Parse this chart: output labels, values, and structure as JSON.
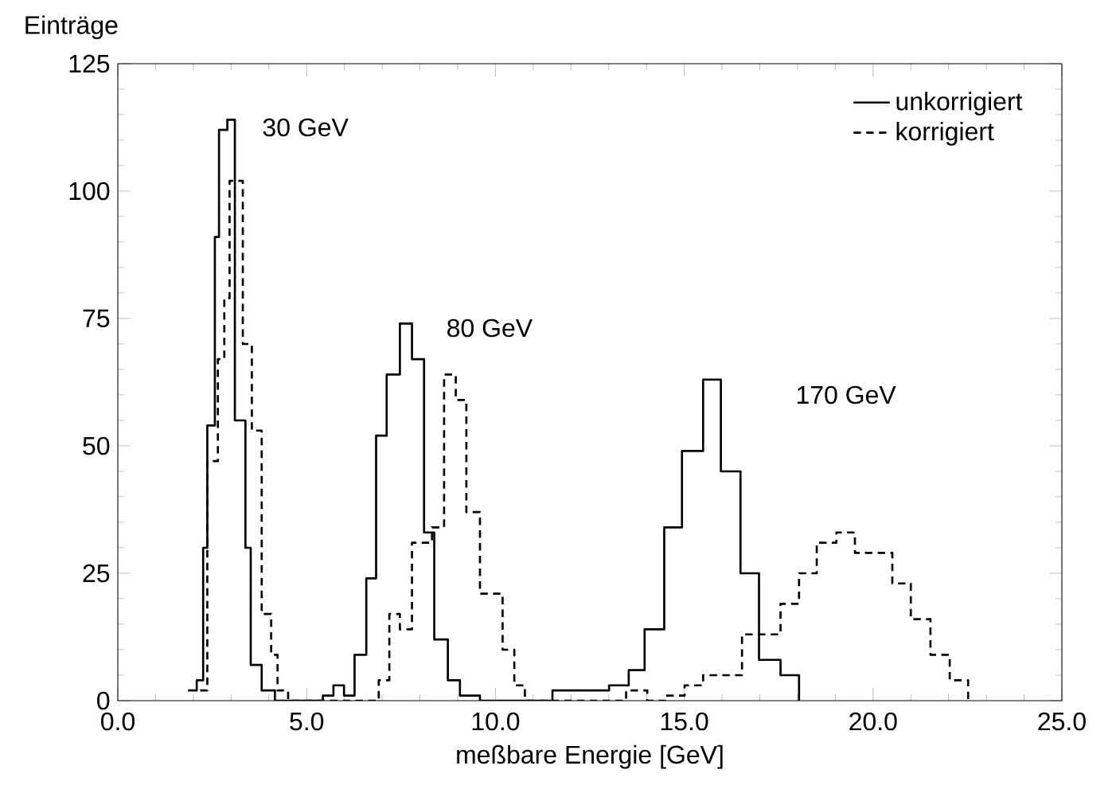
{
  "chart_data": {
    "type": "step",
    "xlabel": "meßbare Energie [GeV]",
    "ylabel": "Einträge",
    "xlim": [
      0,
      25
    ],
    "ylim": [
      0,
      125
    ],
    "xticks": [
      {
        "value": 0,
        "label": "0.0"
      },
      {
        "value": 5,
        "label": "5.0"
      },
      {
        "value": 10,
        "label": "10.0"
      },
      {
        "value": 15,
        "label": "15.0"
      },
      {
        "value": 20,
        "label": "20.0"
      },
      {
        "value": 25,
        "label": "25.0"
      }
    ],
    "yticks": [
      0,
      25,
      50,
      75,
      100,
      125
    ],
    "legend": "top right",
    "marker": "none",
    "series": [
      {
        "name": "unkorrigiert",
        "color": "#000000",
        "line_style": "solid",
        "x": [
          1.86,
          2.09,
          2.26,
          2.37,
          2.57,
          2.68,
          2.9,
          3.1,
          3.38,
          3.52,
          3.81,
          4.16,
          5.43,
          5.71,
          5.99,
          6.27,
          6.58,
          6.84,
          7.12,
          7.47,
          7.79,
          8.11,
          8.38,
          8.74,
          9.06,
          9.59,
          11.51,
          12.05,
          13.01,
          13.53,
          13.95,
          14.47,
          14.94,
          15.5,
          15.97,
          16.49,
          16.98,
          17.55,
          18.04
        ],
        "values": [
          2,
          4,
          30,
          54,
          91,
          112,
          114,
          55,
          30,
          7,
          2,
          0,
          1,
          3,
          1,
          9,
          24,
          52,
          64,
          74,
          67,
          33,
          12,
          4,
          1,
          0,
          2,
          2,
          3,
          6,
          14,
          34,
          49,
          63,
          45,
          25,
          8,
          5,
          0
        ]
      },
      {
        "name": "korrigiert",
        "color": "#000000",
        "line_style": "dashed",
        "x": [
          2.18,
          2.37,
          2.65,
          2.82,
          2.96,
          3.31,
          3.55,
          3.81,
          4.06,
          4.23,
          4.51,
          6.91,
          7.19,
          7.47,
          7.79,
          8.32,
          8.64,
          8.95,
          9.23,
          9.59,
          10.19,
          10.5,
          10.78,
          13.46,
          14.02,
          14.52,
          15.01,
          15.5,
          16.53,
          17.55,
          18.04,
          18.51,
          19.03,
          19.52,
          20.51,
          21.0,
          21.52,
          22.03,
          22.52
        ],
        "values": [
          2,
          47,
          67,
          79,
          102,
          70,
          53,
          17,
          9,
          2,
          0,
          4,
          17,
          14,
          31,
          34,
          64,
          59,
          37,
          21,
          10,
          3,
          0,
          2,
          0,
          1,
          3,
          5,
          13,
          19,
          25,
          31,
          33,
          29,
          23,
          16,
          9,
          4,
          0
        ]
      }
    ],
    "annotations": [
      "30 GeV",
      "80 GeV",
      "170 GeV"
    ]
  }
}
